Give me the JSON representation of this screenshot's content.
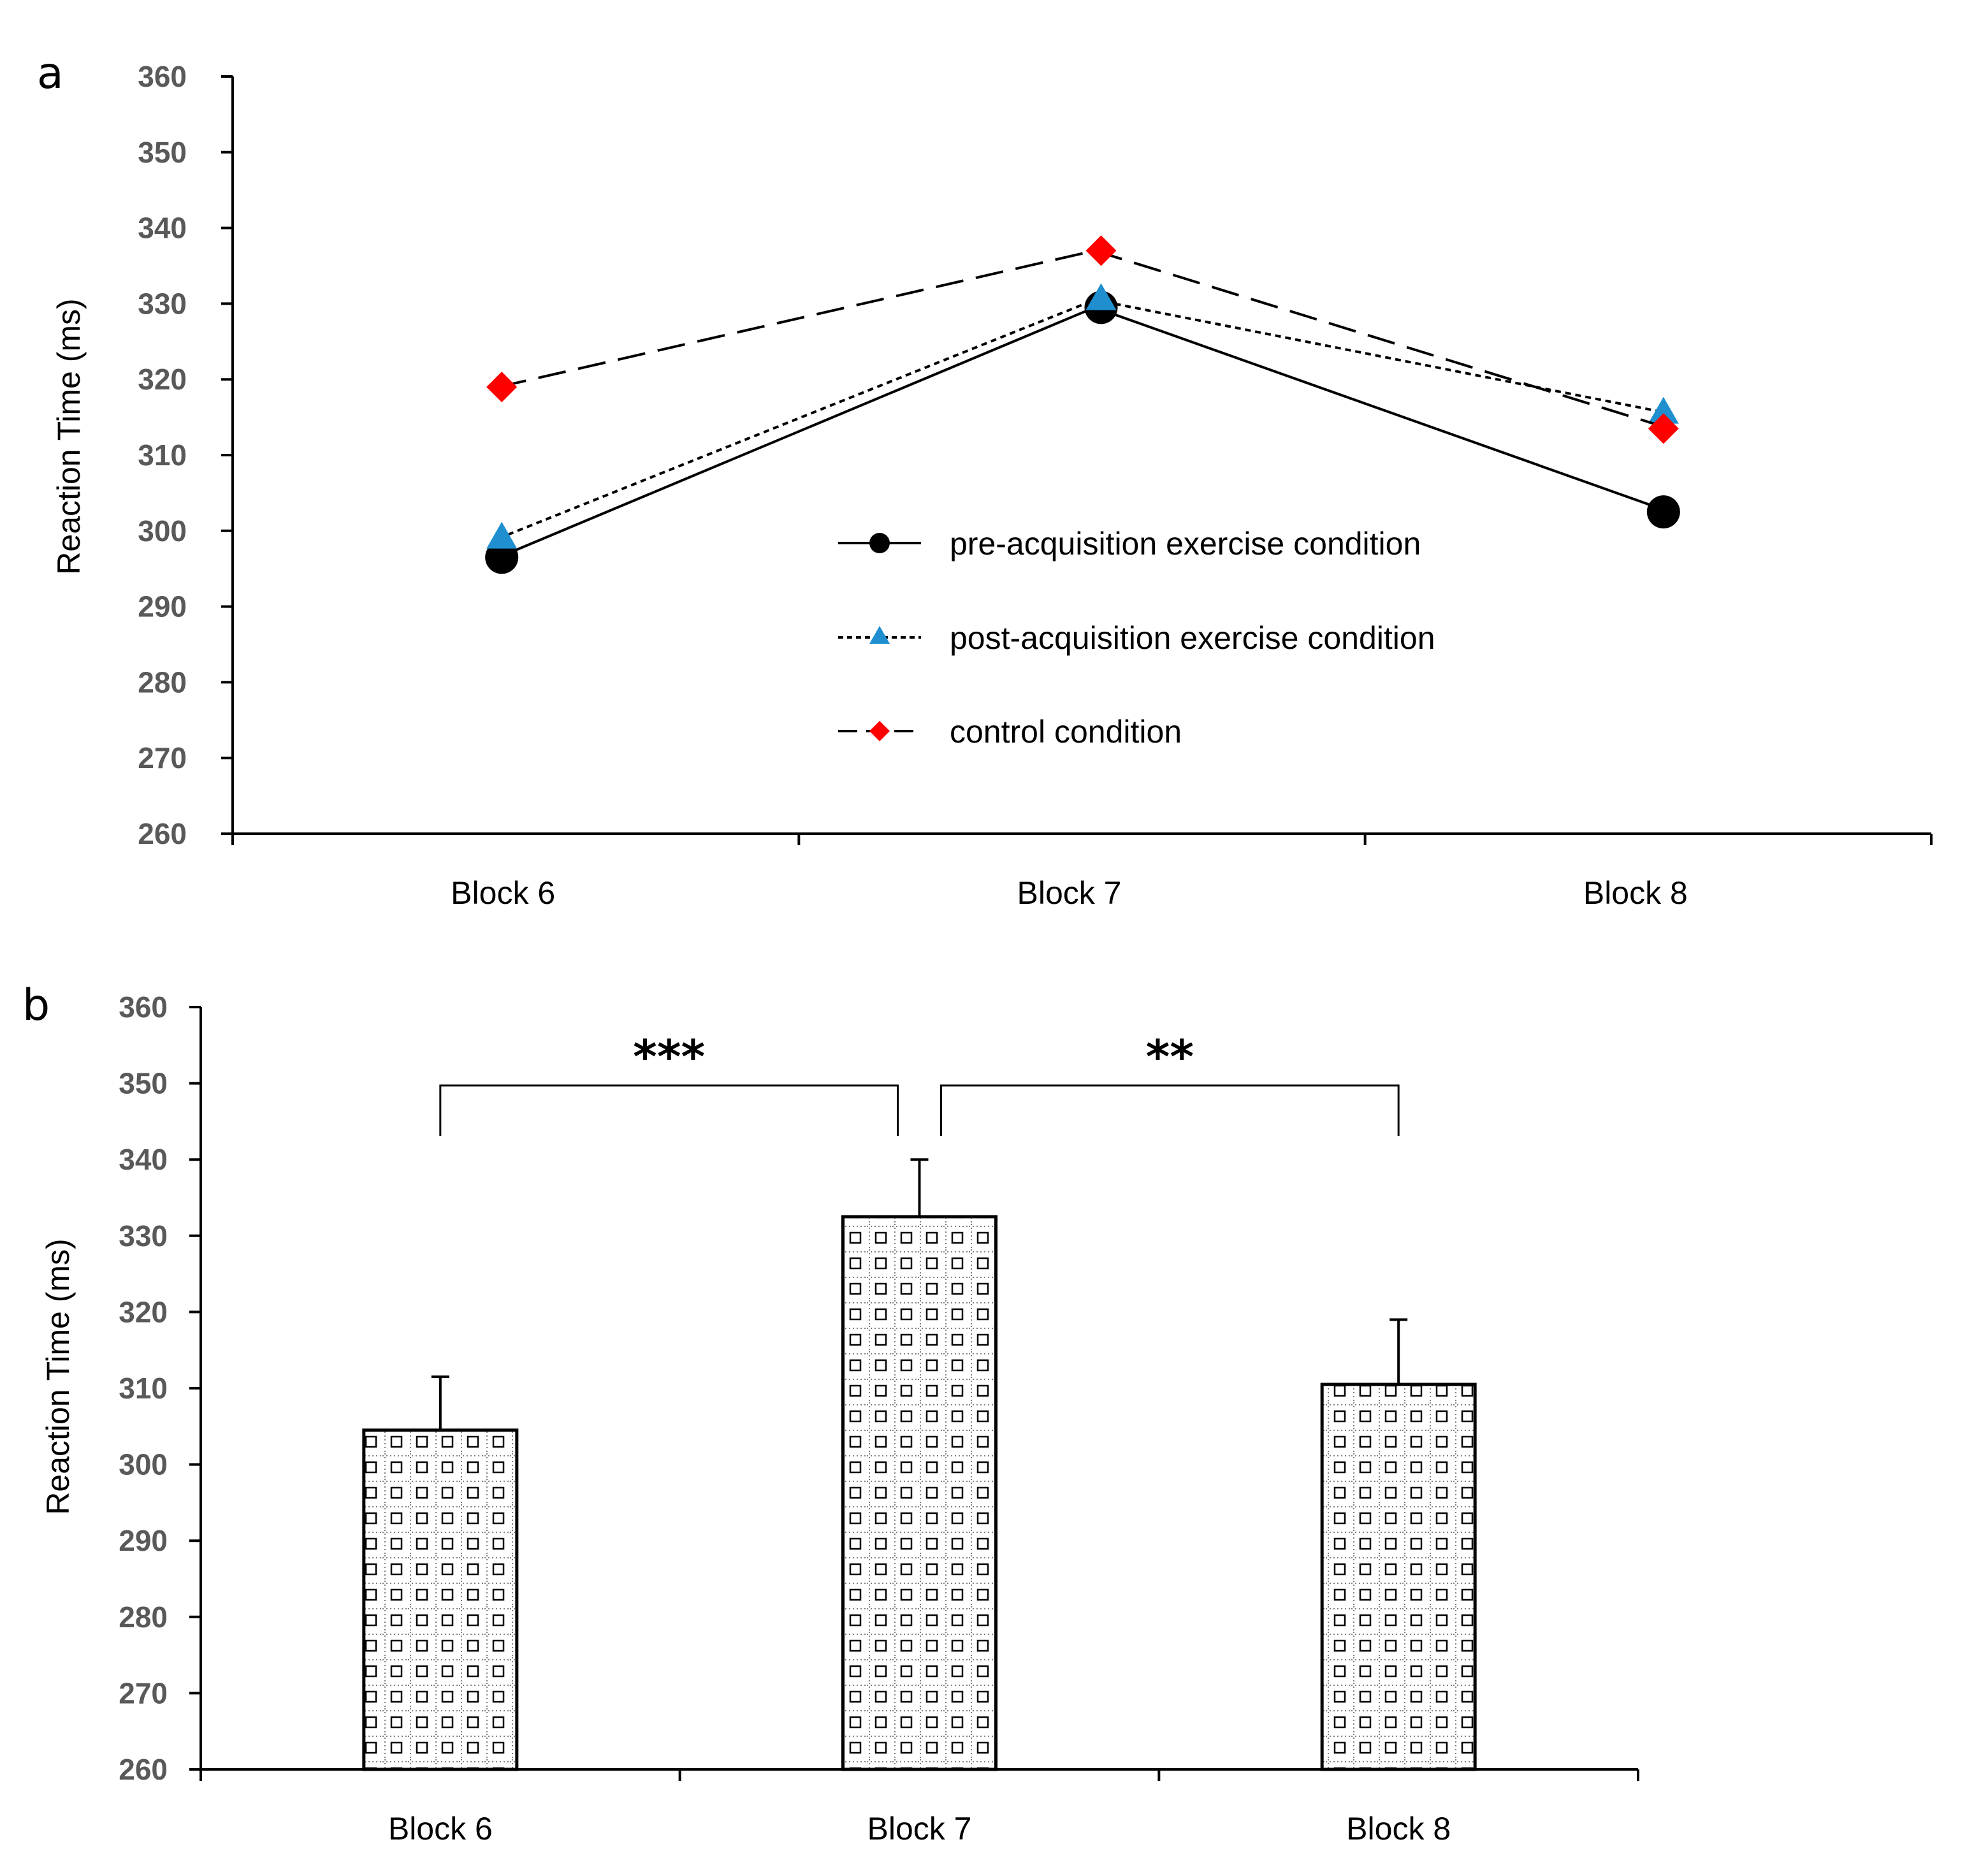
{
  "chart_data": [
    {
      "panel": "a",
      "type": "line",
      "categories": [
        "Block 6",
        "Block 7",
        "Block 8"
      ],
      "ylabel": "Reaction Time (ms)",
      "ylim": [
        260,
        360
      ],
      "yticks": [
        260,
        270,
        280,
        290,
        300,
        310,
        320,
        330,
        340,
        350,
        360
      ],
      "series": [
        {
          "name": "pre-acquisition exercise condition",
          "values": [
            296.5,
            329.5,
            302.5
          ],
          "color": "#000000",
          "marker": "circle",
          "line": "solid"
        },
        {
          "name": "post-acquisition exercise condition",
          "values": [
            299,
            330.5,
            315.5
          ],
          "color": "#1f8fd0",
          "marker": "triangle",
          "line": "dotted"
        },
        {
          "name": "control condition",
          "values": [
            319,
            337,
            313.5
          ],
          "color": "#ff0000",
          "marker": "diamond",
          "line": "dashed"
        }
      ]
    },
    {
      "panel": "b",
      "type": "bar",
      "categories": [
        "Block 6",
        "Block 7",
        "Block 8"
      ],
      "values": [
        304.5,
        332.5,
        310.5
      ],
      "errors": [
        7,
        7.5,
        8.5
      ],
      "ylabel": "Reaction Time (ms)",
      "ylim": [
        260,
        360
      ],
      "yticks": [
        260,
        270,
        280,
        290,
        300,
        310,
        320,
        330,
        340,
        350,
        360
      ],
      "significance": [
        {
          "from": "Block 6",
          "to": "Block 7",
          "label": "***"
        },
        {
          "from": "Block 7",
          "to": "Block 8",
          "label": "**"
        }
      ]
    }
  ]
}
